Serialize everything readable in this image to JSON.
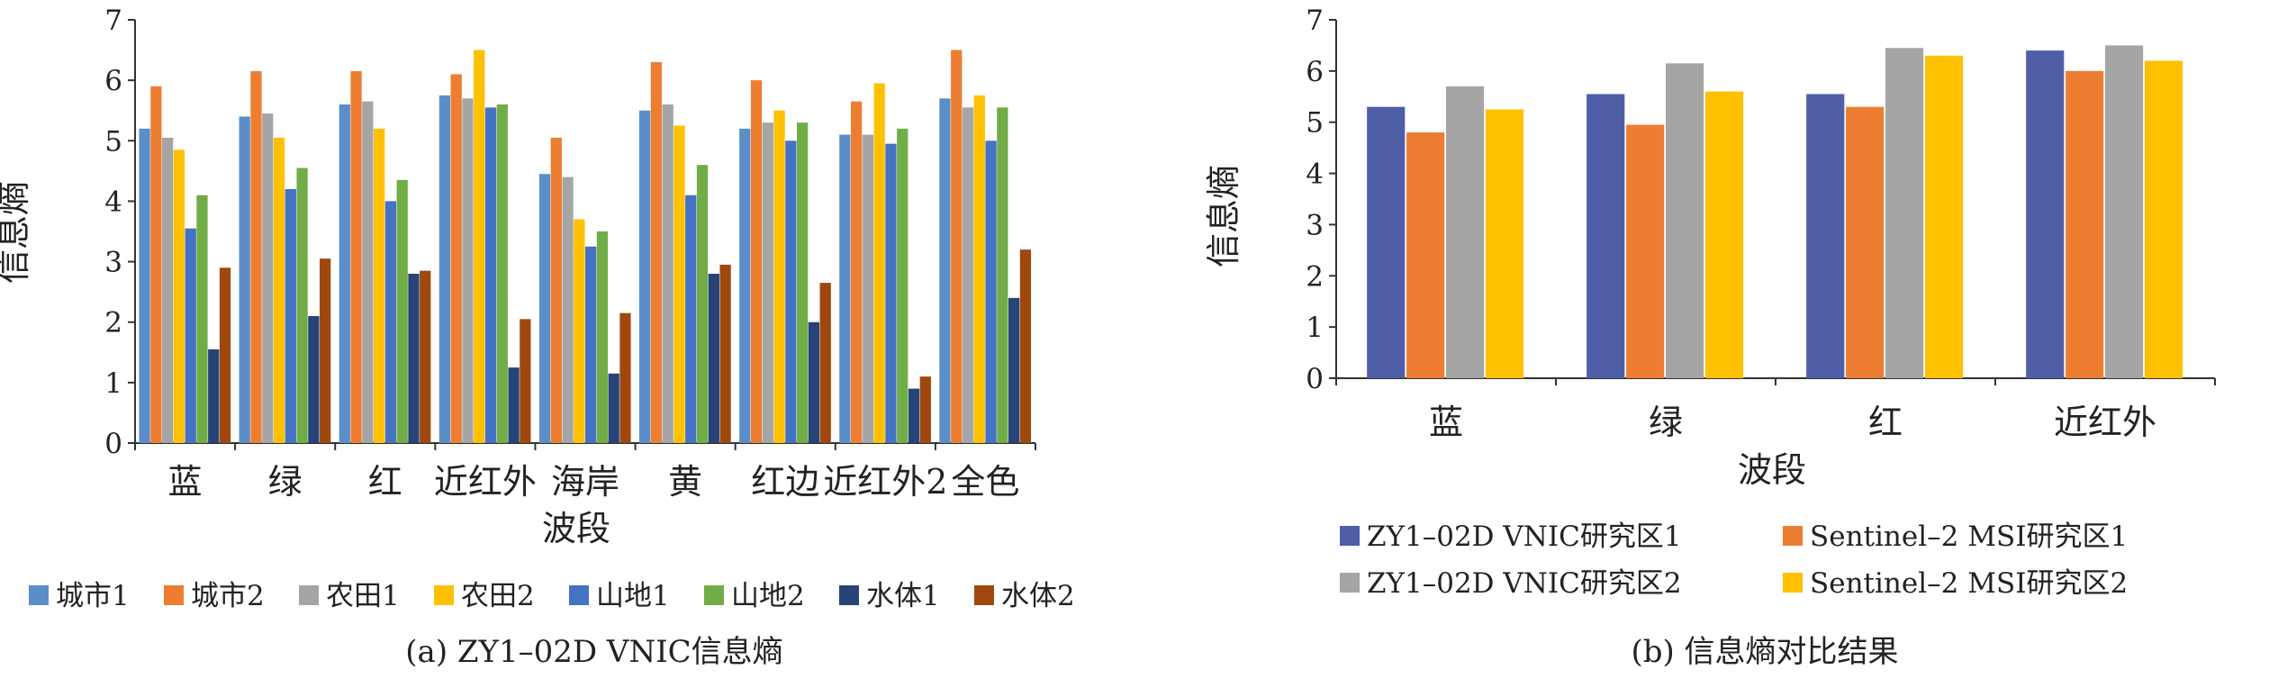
{
  "chart_data": [
    {
      "type": "bar",
      "caption": "(a) ZY1–02D VNIC信息熵",
      "xlabel": "波段",
      "ylabel": "信息熵",
      "ylim": [
        0,
        7
      ],
      "yticks": [
        0,
        1,
        2,
        3,
        4,
        5,
        6,
        7
      ],
      "grid": false,
      "legend_position": "bottom",
      "categories": [
        "蓝",
        "绿",
        "红",
        "近红外",
        "海岸",
        "黄",
        "红边",
        "近红外2",
        "全色"
      ],
      "series": [
        {
          "name": "城市1",
          "color": "#5b8ec9",
          "values": [
            5.2,
            5.4,
            5.6,
            5.75,
            4.45,
            5.5,
            5.2,
            5.1,
            5.7
          ]
        },
        {
          "name": "城市2",
          "color": "#ed7d31",
          "values": [
            5.9,
            6.15,
            6.15,
            6.1,
            5.05,
            6.3,
            6.0,
            5.65,
            6.5
          ]
        },
        {
          "name": "农田1",
          "color": "#a5a5a5",
          "values": [
            5.05,
            5.45,
            5.65,
            5.7,
            4.4,
            5.6,
            5.3,
            5.1,
            5.55
          ]
        },
        {
          "name": "农田2",
          "color": "#ffc000",
          "values": [
            4.85,
            5.05,
            5.2,
            6.5,
            3.7,
            5.25,
            5.5,
            5.95,
            5.75
          ]
        },
        {
          "name": "山地1",
          "color": "#4472c4",
          "values": [
            3.55,
            4.2,
            4.0,
            5.55,
            3.25,
            4.1,
            5.0,
            4.95,
            5.0
          ]
        },
        {
          "name": "山地2",
          "color": "#70ad47",
          "values": [
            4.1,
            4.55,
            4.35,
            5.6,
            3.5,
            4.6,
            5.3,
            5.2,
            5.55
          ]
        },
        {
          "name": "水体1",
          "color": "#264478",
          "values": [
            1.55,
            2.1,
            2.8,
            1.25,
            1.15,
            2.8,
            2.0,
            0.9,
            2.4
          ]
        },
        {
          "name": "水体2",
          "color": "#9e480e",
          "values": [
            2.9,
            3.05,
            2.85,
            2.05,
            2.15,
            2.95,
            2.65,
            1.1,
            3.2
          ]
        }
      ]
    },
    {
      "type": "bar",
      "caption": "(b) 信息熵对比结果",
      "xlabel": "波段",
      "ylabel": "信息熵",
      "ylim": [
        0,
        7
      ],
      "yticks": [
        0,
        1,
        2,
        3,
        4,
        5,
        6,
        7
      ],
      "grid": false,
      "legend_position": "bottom",
      "categories": [
        "蓝",
        "绿",
        "红",
        "近红外"
      ],
      "series": [
        {
          "name": "ZY1–02D VNIC研究区1",
          "color": "#4e5fa8",
          "values": [
            5.3,
            5.55,
            5.55,
            6.4
          ]
        },
        {
          "name": "Sentinel–2 MSI研究区1",
          "color": "#ed7d31",
          "values": [
            4.8,
            4.95,
            5.3,
            6.0
          ]
        },
        {
          "name": "ZY1–02D VNIC研究区2",
          "color": "#a5a5a5",
          "values": [
            5.7,
            6.15,
            6.45,
            6.5
          ]
        },
        {
          "name": "Sentinel–2 MSI研究区2",
          "color": "#ffc000",
          "values": [
            5.25,
            5.6,
            6.3,
            6.2
          ]
        }
      ]
    }
  ]
}
